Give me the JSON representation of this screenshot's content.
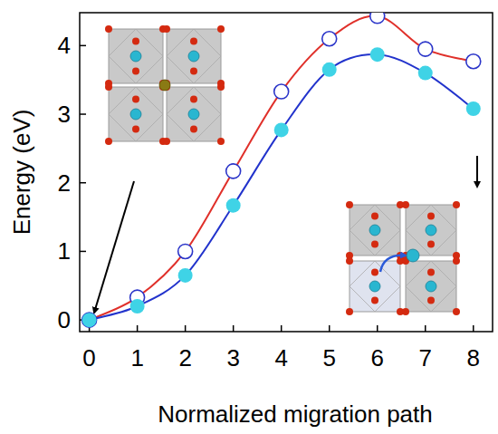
{
  "chart_data": {
    "type": "line",
    "x_label": "Normalized migration path",
    "y_label": "Energy (eV)",
    "x": [
      0,
      1,
      2,
      3,
      4,
      5,
      6,
      7,
      8
    ],
    "series": [
      {
        "color": "#e0302a",
        "marker": "open-circle",
        "values": [
          0,
          0.33,
          1.0,
          2.17,
          3.33,
          4.1,
          4.43,
          3.95,
          3.77
        ]
      },
      {
        "color": "#2233cc",
        "marker": "filled-circle",
        "values": [
          0,
          0.2,
          0.65,
          1.67,
          2.77,
          3.65,
          3.87,
          3.6,
          3.08
        ]
      }
    ],
    "xlim": [
      -0.2,
      8.4
    ],
    "ylim": [
      -0.17,
      4.48
    ],
    "xticks": [
      0,
      1,
      2,
      3,
      4,
      5,
      6,
      7,
      8
    ],
    "yticks": [
      0,
      1,
      2,
      3,
      4
    ],
    "grid": false
  }
}
